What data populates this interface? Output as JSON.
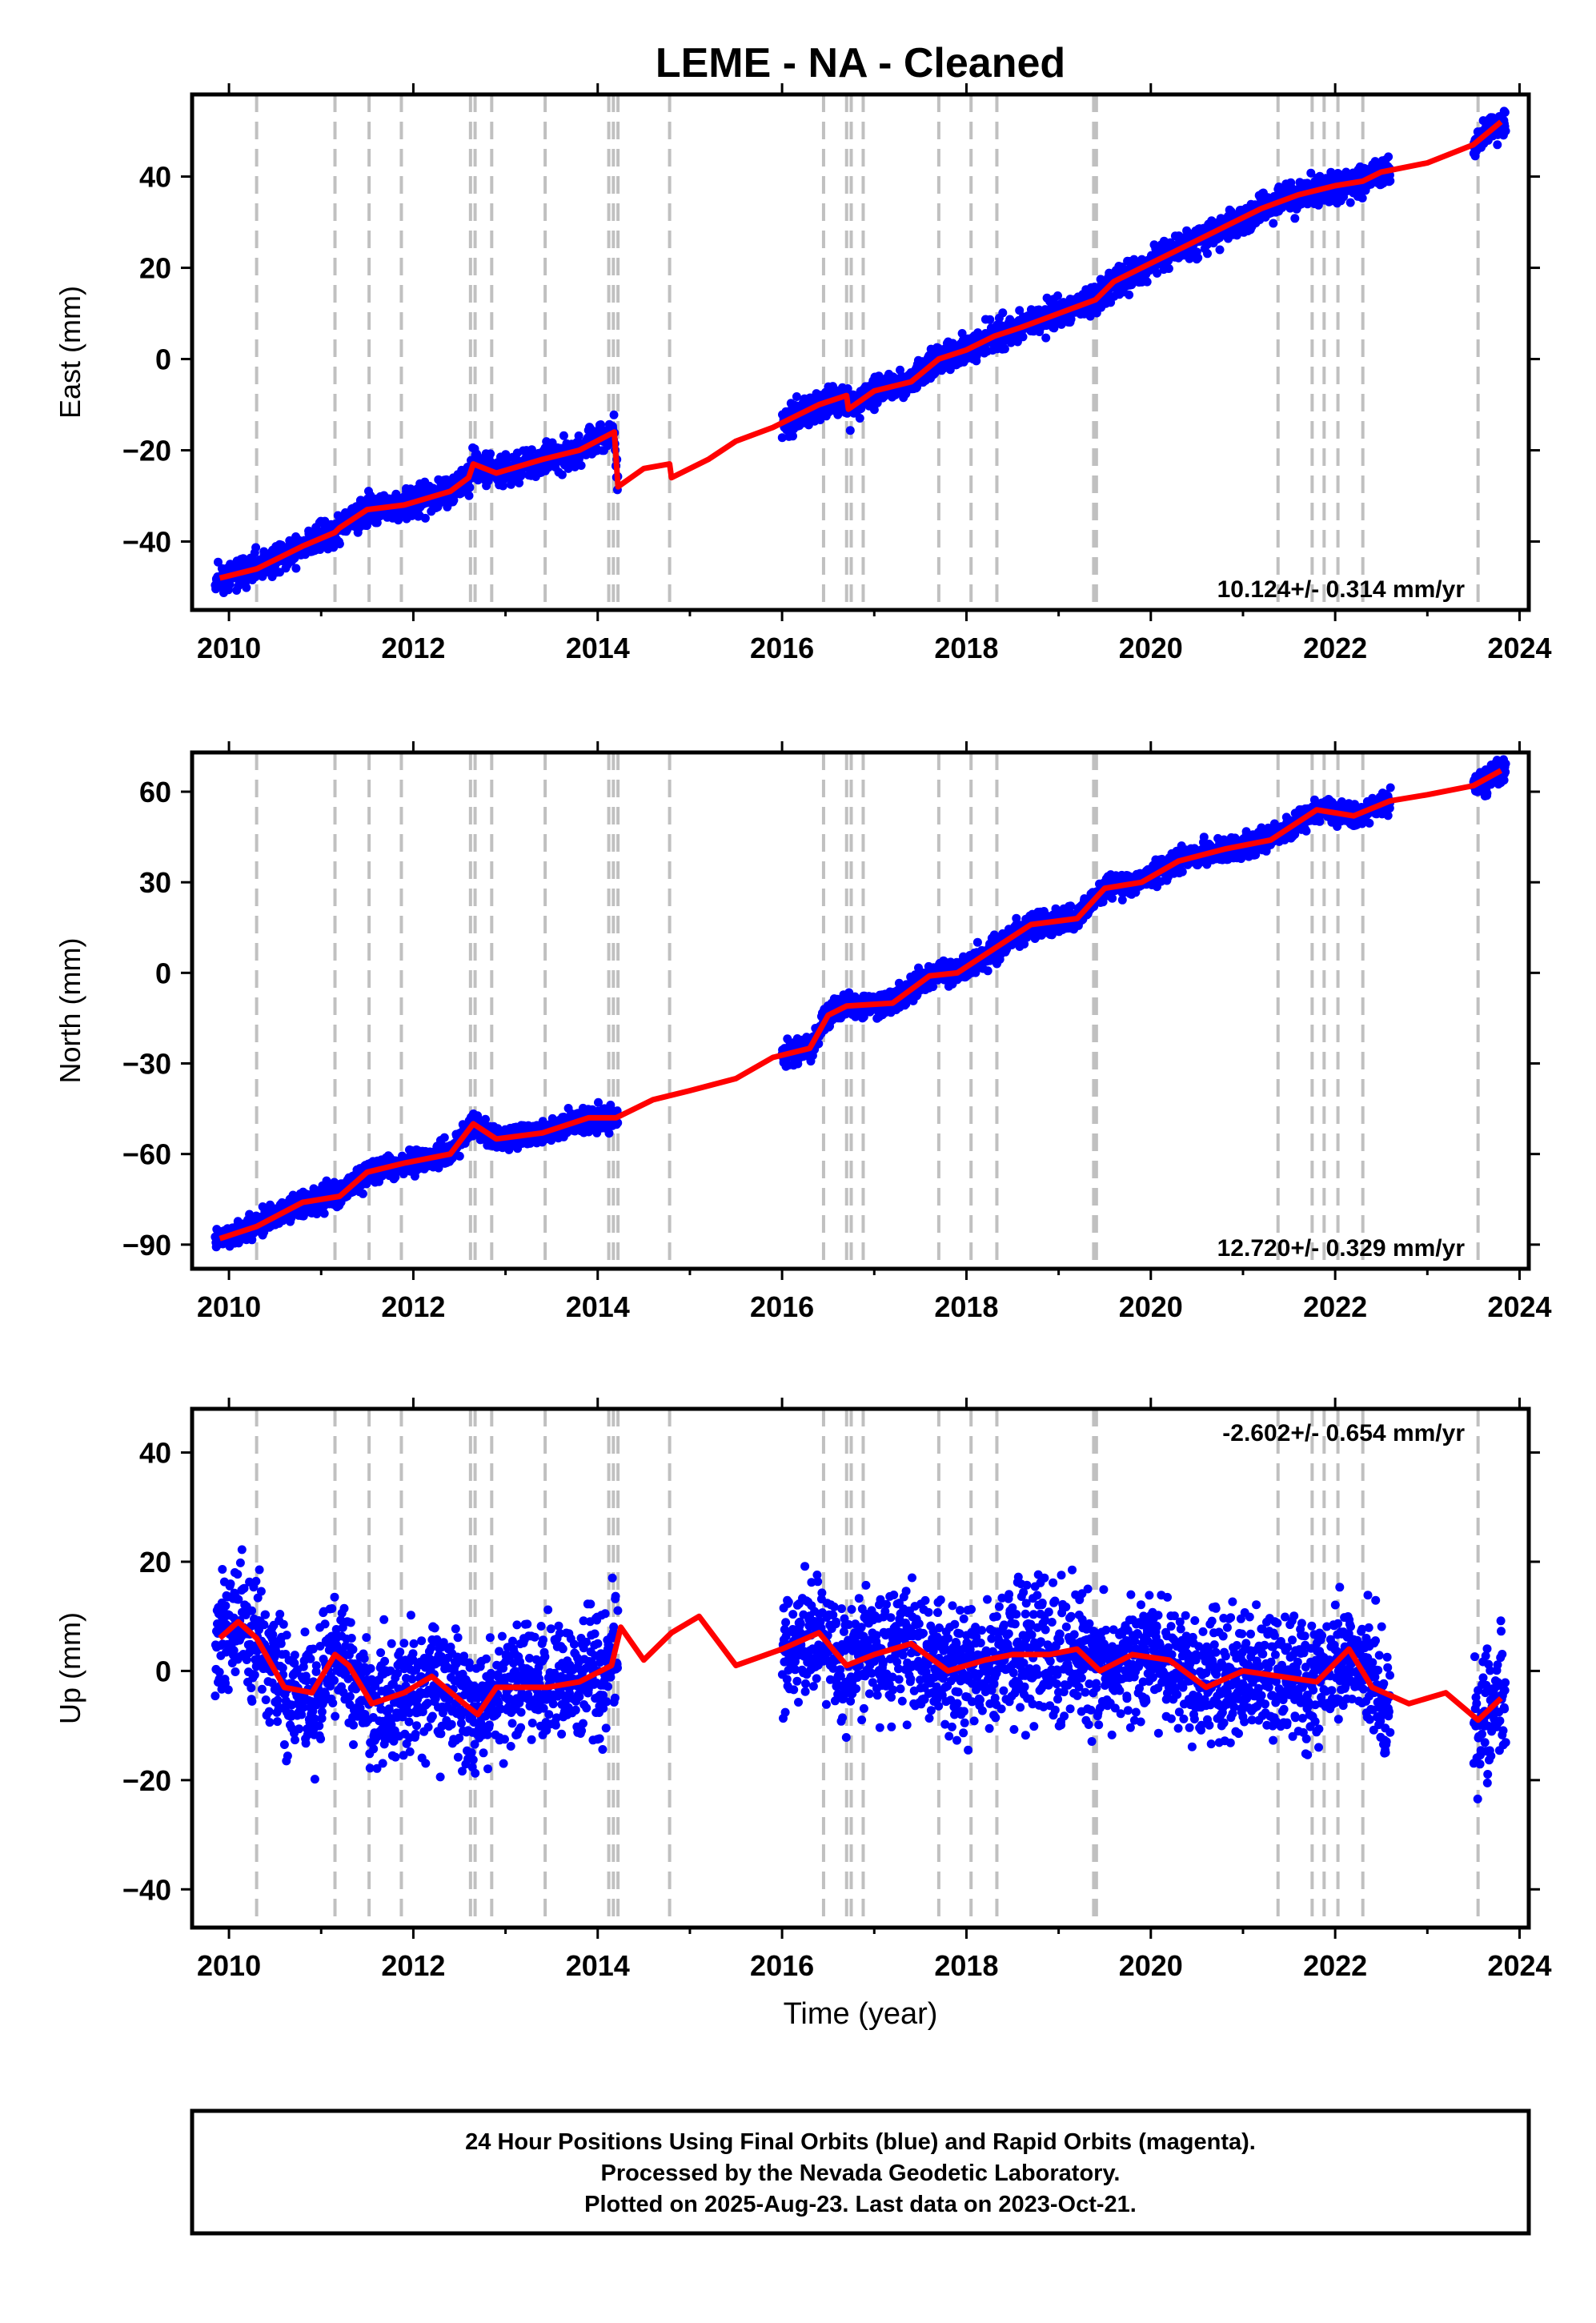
{
  "title": "LEME  - NA - Cleaned",
  "xlabel": "Time (year)",
  "x_ticks": [
    "2010",
    "2012",
    "2014",
    "2016",
    "2018",
    "2020",
    "2022",
    "2024"
  ],
  "footer": {
    "line1": "24 Hour Positions Using Final Orbits (blue) and Rapid Orbits (magenta).",
    "line2": "Processed by the Nevada Geodetic Laboratory.",
    "line3": "Plotted on 2025-Aug-23. Last data on 2023-Oct-21."
  },
  "colors": {
    "points": "#0000ff",
    "model": "#ff0000",
    "event_lines": "#c0c0c0",
    "frame": "#000000"
  },
  "event_lines_years": [
    2010.3,
    2011.15,
    2011.52,
    2011.87,
    2012.62,
    2012.67,
    2012.85,
    2013.43,
    2014.12,
    2014.17,
    2014.22,
    2014.78,
    2016.45,
    2016.7,
    2016.75,
    2016.88,
    2017.7,
    2018.05,
    2018.33,
    2019.38,
    2019.41,
    2021.38,
    2021.75,
    2021.88,
    2022.03,
    2022.3,
    2023.55
  ],
  "chart_data": [
    {
      "type": "scatter",
      "name": "east",
      "ylabel": "East (mm)",
      "xlim": [
        2009.6,
        2024.1
      ],
      "ylim": [
        -55,
        58
      ],
      "y_ticks": [
        -40,
        -20,
        0,
        20,
        40
      ],
      "rate_label": "10.124+/- 0.314 mm/yr",
      "rate_position": "bottom-right",
      "model_x": [
        2009.9,
        2010.3,
        2010.8,
        2011.15,
        2011.2,
        2011.5,
        2011.9,
        2012.4,
        2012.6,
        2012.65,
        2012.9,
        2013.4,
        2013.8,
        2014.18,
        2014.22,
        2014.5,
        2014.78,
        2014.8,
        2015.2,
        2015.5,
        2015.9,
        2016.2,
        2016.4,
        2016.7,
        2016.72,
        2017.0,
        2017.4,
        2017.7,
        2018.0,
        2018.3,
        2018.6,
        2019.0,
        2019.4,
        2019.6,
        2020.0,
        2020.4,
        2020.8,
        2021.2,
        2021.6,
        2022.0,
        2022.3,
        2022.5,
        2023.0,
        2023.5,
        2023.8
      ],
      "model_y": [
        -48,
        -46,
        -41,
        -38,
        -37,
        -33,
        -32,
        -29,
        -26,
        -23,
        -25,
        -22,
        -20,
        -16,
        -28,
        -24,
        -23,
        -26,
        -22,
        -18,
        -15,
        -12,
        -10,
        -8,
        -11,
        -7,
        -5,
        0,
        2,
        5,
        7,
        10,
        13,
        17,
        21,
        25,
        29,
        33,
        36,
        38,
        39,
        41,
        43,
        47,
        52
      ],
      "segments": [
        [
          2009.85,
          2014.22
        ],
        [
          2016.0,
          2019.41
        ],
        [
          2019.41,
          2022.6
        ],
        [
          2023.5,
          2023.85
        ]
      ],
      "base": -48.5,
      "rate": 10.124,
      "scatter_sd": 1.6,
      "seed": 11
    },
    {
      "type": "scatter",
      "name": "north",
      "ylabel": "North (mm)",
      "xlim": [
        2009.6,
        2024.1
      ],
      "ylim": [
        -98,
        73
      ],
      "y_ticks": [
        -90,
        -60,
        -30,
        0,
        30,
        60
      ],
      "rate_label": "12.720+/- 0.329 mm/yr",
      "rate_position": "bottom-right",
      "model_x": [
        2009.9,
        2010.3,
        2010.8,
        2011.2,
        2011.5,
        2011.9,
        2012.4,
        2012.65,
        2012.9,
        2013.4,
        2013.9,
        2014.2,
        2014.6,
        2015.0,
        2015.5,
        2015.9,
        2016.3,
        2016.5,
        2016.7,
        2017.2,
        2017.6,
        2017.9,
        2018.3,
        2018.7,
        2019.2,
        2019.5,
        2019.9,
        2020.3,
        2020.8,
        2021.3,
        2021.8,
        2022.2,
        2022.6,
        2023.0,
        2023.5,
        2023.8
      ],
      "model_y": [
        -88,
        -84,
        -76,
        -74,
        -66,
        -63,
        -60,
        -50,
        -55,
        -53,
        -48,
        -48,
        -42,
        -39,
        -35,
        -28,
        -25,
        -14,
        -11,
        -10,
        -1,
        0,
        8,
        16,
        18,
        28,
        30,
        37,
        41,
        44,
        54,
        52,
        57,
        59,
        62,
        67
      ],
      "segments": [
        [
          2009.85,
          2014.22
        ],
        [
          2016.0,
          2019.41
        ],
        [
          2019.41,
          2022.6
        ],
        [
          2023.5,
          2023.85
        ]
      ],
      "base": -89,
      "rate": 12.72,
      "scatter_sd": 2.0,
      "seed": 23
    },
    {
      "type": "scatter",
      "name": "up",
      "ylabel": "Up (mm)",
      "xlim": [
        2009.6,
        2024.1
      ],
      "ylim": [
        -47,
        48
      ],
      "y_ticks": [
        -40,
        -20,
        0,
        20,
        40
      ],
      "rate_label": "-2.602+/- 0.654 mm/yr",
      "rate_position": "top-right",
      "model_x": [
        2009.9,
        2010.1,
        2010.3,
        2010.6,
        2010.9,
        2011.15,
        2011.3,
        2011.55,
        2011.9,
        2012.2,
        2012.55,
        2012.7,
        2012.9,
        2013.2,
        2013.45,
        2013.8,
        2014.15,
        2014.25,
        2014.5,
        2014.8,
        2015.1,
        2015.5,
        2016.0,
        2016.4,
        2016.7,
        2017.0,
        2017.4,
        2017.8,
        2018.2,
        2018.5,
        2018.9,
        2019.2,
        2019.45,
        2019.8,
        2020.2,
        2020.6,
        2021.0,
        2021.4,
        2021.8,
        2022.15,
        2022.4,
        2022.8,
        2023.2,
        2023.55,
        2023.8
      ],
      "model_y": [
        6,
        9,
        6,
        -3,
        -4,
        3,
        1,
        -6,
        -4,
        -1,
        -6,
        -8,
        -3,
        -3,
        -3,
        -2,
        1,
        8,
        2,
        7,
        10,
        1,
        4,
        7,
        1,
        3,
        5,
        0,
        2,
        3,
        3,
        4,
        0,
        3,
        2,
        -3,
        0,
        -1,
        -2,
        4,
        -3,
        -6,
        -4,
        -9,
        -5
      ],
      "segments": [
        [
          2009.85,
          2014.22
        ],
        [
          2016.0,
          2019.41
        ],
        [
          2019.41,
          2022.6
        ],
        [
          2023.5,
          2023.85
        ]
      ],
      "base": 0,
      "rate": -2.602,
      "scatter_sd": 5.5,
      "seed": 37
    }
  ]
}
